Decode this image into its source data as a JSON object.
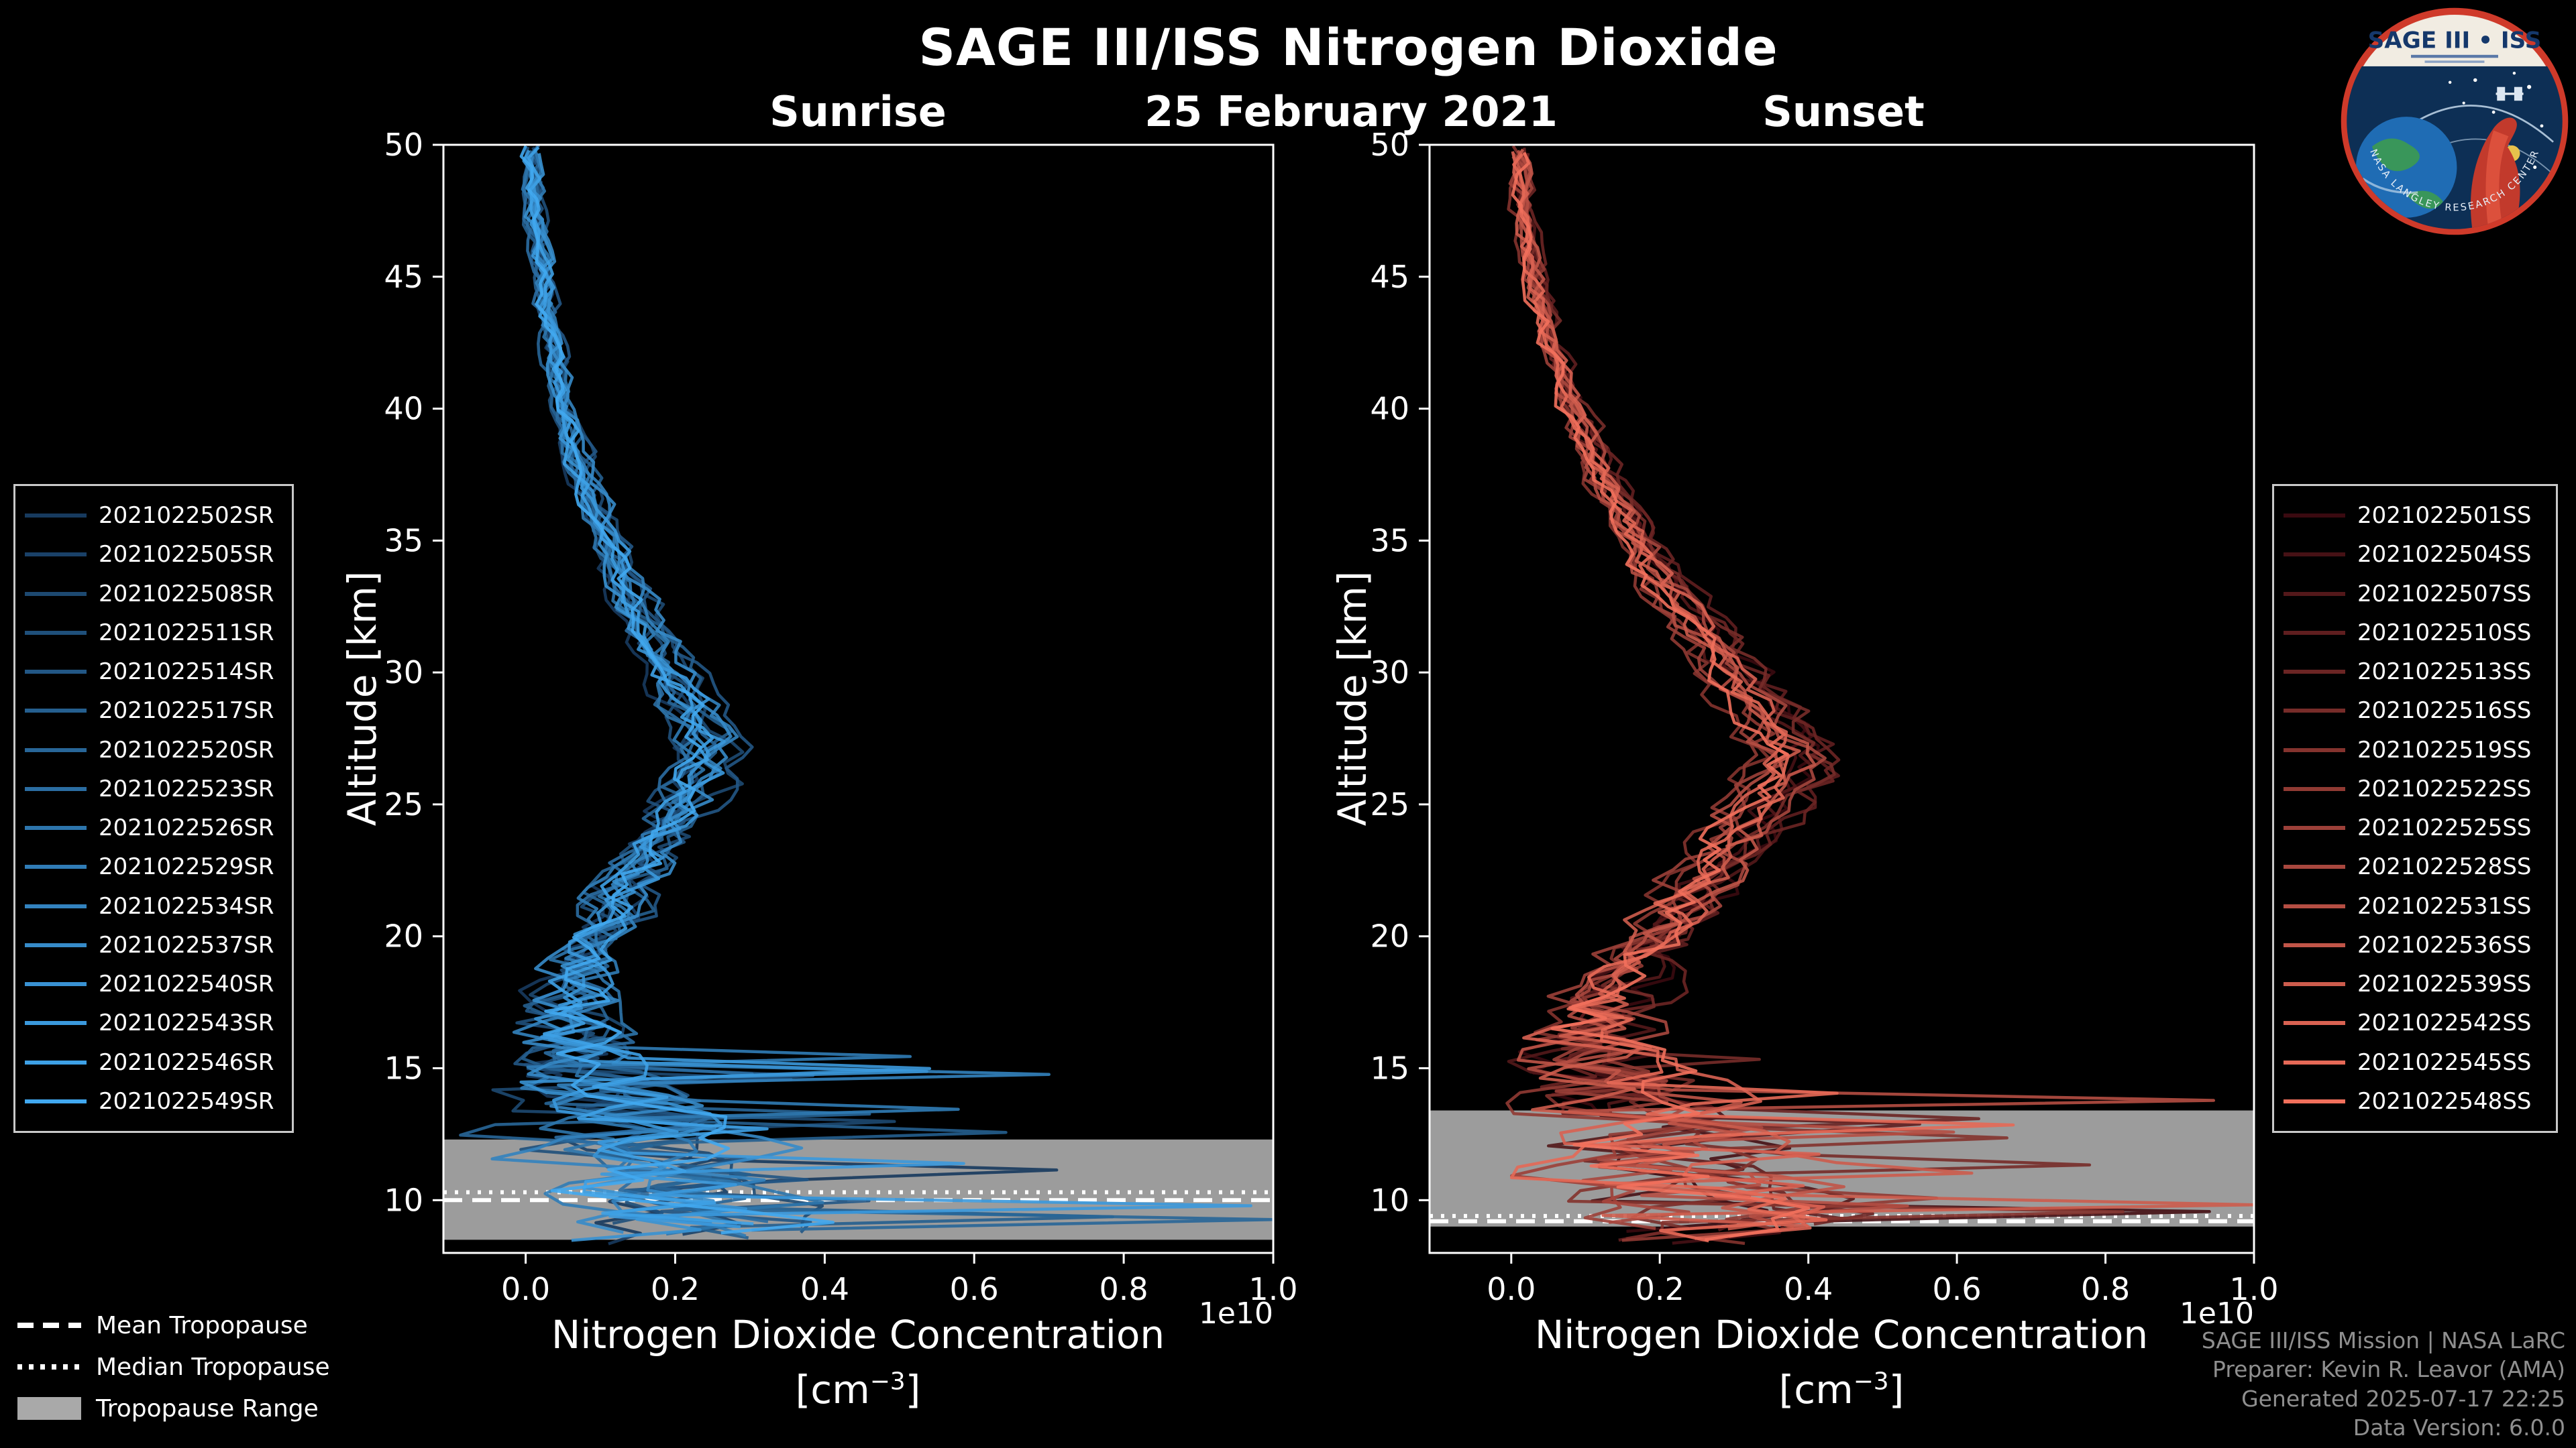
{
  "header": {
    "title": "SAGE III/ISS Nitrogen Dioxide",
    "date": "25 February 2021",
    "sunrise_label": "Sunrise",
    "sunset_label": "Sunset"
  },
  "axes": {
    "y_label": "Altitude [km]",
    "x_label_line1": "Nitrogen Dioxide Concentration",
    "unit_open": "[cm",
    "unit_sup": "−3",
    "unit_close": "]",
    "offset_label": "1e10",
    "y_ticks": [
      10,
      15,
      20,
      25,
      30,
      35,
      40,
      45,
      50
    ],
    "x_ticks": [
      "0.0",
      "0.2",
      "0.4",
      "0.6",
      "0.8",
      "1.0"
    ],
    "x_tick_values": [
      0.0,
      0.2,
      0.4,
      0.6,
      0.8,
      1.0
    ]
  },
  "trop_legend": {
    "mean": "Mean Tropopause",
    "median": "Median Tropopause",
    "range": "Tropopause Range"
  },
  "footer": {
    "lines": [
      "SAGE III/ISS Mission | NASA LaRC",
      "Preparer: Kevin R. Leavor (AMA)",
      "Generated 2025-07-17 22:25",
      "Data Version: 6.0.0"
    ]
  },
  "logo": {
    "title": "SAGE III • ISS",
    "ring_text": "NASA LANGLEY RESEARCH CENTER"
  },
  "chart_data": [
    {
      "type": "line",
      "panel": "Sunrise",
      "title": "Sunrise",
      "xlabel": "Nitrogen Dioxide Concentration [cm^-3]",
      "ylabel": "Altitude [km]",
      "x_units_multiplier": 10000000000.0,
      "xlim": [
        -0.11,
        1.0
      ],
      "ylim": [
        8,
        50
      ],
      "grid": false,
      "legend_position": "outside-left",
      "color_start": "#173a5e",
      "color_end": "#41a8f0",
      "series": [
        "2021022502SR",
        "2021022505SR",
        "2021022508SR",
        "2021022511SR",
        "2021022514SR",
        "2021022517SR",
        "2021022520SR",
        "2021022523SR",
        "2021022526SR",
        "2021022529SR",
        "2021022534SR",
        "2021022537SR",
        "2021022540SR",
        "2021022543SR",
        "2021022546SR",
        "2021022549SR"
      ],
      "mean_profile": [
        [
          50,
          0.008
        ],
        [
          48,
          0.012
        ],
        [
          46,
          0.018
        ],
        [
          44,
          0.028
        ],
        [
          42,
          0.038
        ],
        [
          40,
          0.052
        ],
        [
          38,
          0.072
        ],
        [
          36,
          0.095
        ],
        [
          34,
          0.125
        ],
        [
          32,
          0.16
        ],
        [
          30,
          0.2
        ],
        [
          29,
          0.22
        ],
        [
          28,
          0.235
        ],
        [
          27,
          0.245
        ],
        [
          26,
          0.235
        ],
        [
          25,
          0.215
        ],
        [
          24,
          0.19
        ],
        [
          23,
          0.165
        ],
        [
          22,
          0.14
        ],
        [
          21,
          0.12
        ],
        [
          20,
          0.1
        ],
        [
          19,
          0.085
        ],
        [
          18,
          0.07
        ],
        [
          17,
          0.06
        ],
        [
          16,
          0.065
        ],
        [
          15,
          0.085
        ],
        [
          14,
          0.11
        ],
        [
          13,
          0.13
        ],
        [
          12,
          0.15
        ],
        [
          11,
          0.18
        ],
        [
          10,
          0.22
        ],
        [
          9,
          0.24
        ],
        [
          8.2,
          0.18
        ]
      ],
      "noise_profile": [
        [
          50,
          0.012
        ],
        [
          40,
          0.013
        ],
        [
          35,
          0.016
        ],
        [
          30,
          0.022
        ],
        [
          25,
          0.03
        ],
        [
          20,
          0.04
        ],
        [
          18,
          0.055
        ],
        [
          16,
          0.09
        ],
        [
          15,
          0.11
        ],
        [
          14,
          0.13
        ],
        [
          12,
          0.16
        ],
        [
          10,
          0.17
        ],
        [
          8,
          0.17
        ]
      ],
      "spike_alt_max": 15.5,
      "forced_spikes": [
        {
          "series": 10,
          "alt": 14.6,
          "value": 0.7
        },
        {
          "series": 13,
          "alt": 9.9,
          "value": 0.97
        },
        {
          "series": 6,
          "alt": 13.4,
          "value": 0.46
        }
      ],
      "tropopause": {
        "mean": 10.0,
        "median": 10.3,
        "range": [
          8.5,
          12.3
        ]
      }
    },
    {
      "type": "line",
      "panel": "Sunset",
      "title": "Sunset",
      "xlabel": "Nitrogen Dioxide Concentration [cm^-3]",
      "ylabel": "Altitude [km]",
      "x_units_multiplier": 10000000000.0,
      "xlim": [
        -0.11,
        1.0
      ],
      "ylim": [
        8,
        50
      ],
      "grid": false,
      "legend_position": "outside-right",
      "color_start": "#3a0a10",
      "color_end": "#f2705c",
      "series": [
        "2021022501SS",
        "2021022504SS",
        "2021022507SS",
        "2021022510SS",
        "2021022513SS",
        "2021022516SS",
        "2021022519SS",
        "2021022522SS",
        "2021022525SS",
        "2021022528SS",
        "2021022531SS",
        "2021022536SS",
        "2021022539SS",
        "2021022542SS",
        "2021022545SS",
        "2021022548SS"
      ],
      "mean_profile": [
        [
          50,
          0.01
        ],
        [
          48,
          0.015
        ],
        [
          46,
          0.025
        ],
        [
          44,
          0.04
        ],
        [
          42,
          0.06
        ],
        [
          40,
          0.085
        ],
        [
          38,
          0.115
        ],
        [
          36,
          0.15
        ],
        [
          34,
          0.19
        ],
        [
          32,
          0.245
        ],
        [
          30,
          0.3
        ],
        [
          29,
          0.33
        ],
        [
          28,
          0.355
        ],
        [
          27,
          0.375
        ],
        [
          26,
          0.37
        ],
        [
          25,
          0.345
        ],
        [
          24,
          0.315
        ],
        [
          23,
          0.285
        ],
        [
          22,
          0.255
        ],
        [
          21,
          0.22
        ],
        [
          20,
          0.19
        ],
        [
          19,
          0.165
        ],
        [
          18,
          0.145
        ],
        [
          17,
          0.125
        ],
        [
          16,
          0.115
        ],
        [
          15,
          0.12
        ],
        [
          14,
          0.14
        ],
        [
          13,
          0.17
        ],
        [
          12,
          0.2
        ],
        [
          11,
          0.24
        ],
        [
          10,
          0.28
        ],
        [
          9,
          0.26
        ],
        [
          8.3,
          0.2
        ]
      ],
      "noise_profile": [
        [
          50,
          0.012
        ],
        [
          40,
          0.014
        ],
        [
          35,
          0.018
        ],
        [
          30,
          0.024
        ],
        [
          25,
          0.032
        ],
        [
          20,
          0.045
        ],
        [
          18,
          0.06
        ],
        [
          16,
          0.095
        ],
        [
          15,
          0.115
        ],
        [
          14,
          0.135
        ],
        [
          12,
          0.165
        ],
        [
          10,
          0.175
        ],
        [
          8,
          0.175
        ]
      ],
      "spike_alt_max": 15.5,
      "forced_spikes": [
        {
          "series": 1,
          "alt": 9.6,
          "value": 0.94
        },
        {
          "series": 3,
          "alt": 13.0,
          "value": 0.55
        },
        {
          "series": 12,
          "alt": 11.0,
          "value": 0.62
        }
      ],
      "tropopause": {
        "mean": 9.2,
        "median": 9.4,
        "range": [
          9.0,
          13.4
        ]
      }
    }
  ]
}
